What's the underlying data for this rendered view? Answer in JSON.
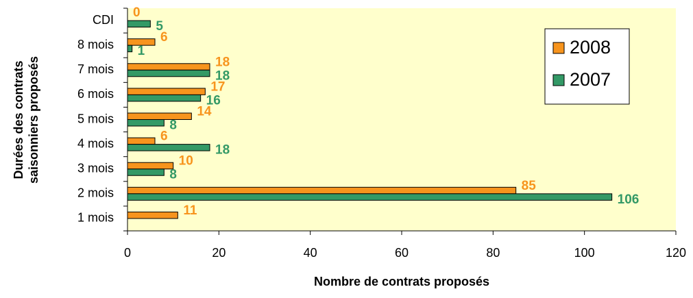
{
  "chart_data": {
    "type": "hbar",
    "ylabel": [
      "Durées des contrats",
      "saisonniers proposés"
    ],
    "xlabel": "Nombre de contrats proposés",
    "categories": [
      "CDI",
      "8 mois",
      "7 mois",
      "6 mois",
      "5 mois",
      "4 mois",
      "3 mois",
      "2 mois",
      "1 mois"
    ],
    "series": [
      {
        "name": "2008",
        "color": "#f7941d",
        "values": [
          0,
          6,
          18,
          17,
          14,
          6,
          10,
          85,
          11
        ]
      },
      {
        "name": "2007",
        "color": "#339966",
        "values": [
          5,
          1,
          18,
          16,
          8,
          18,
          8,
          106,
          null
        ]
      }
    ],
    "xlim": [
      0,
      120
    ],
    "xticks": [
      0,
      20,
      40,
      60,
      80,
      100,
      120
    ],
    "legend": "upper right"
  }
}
